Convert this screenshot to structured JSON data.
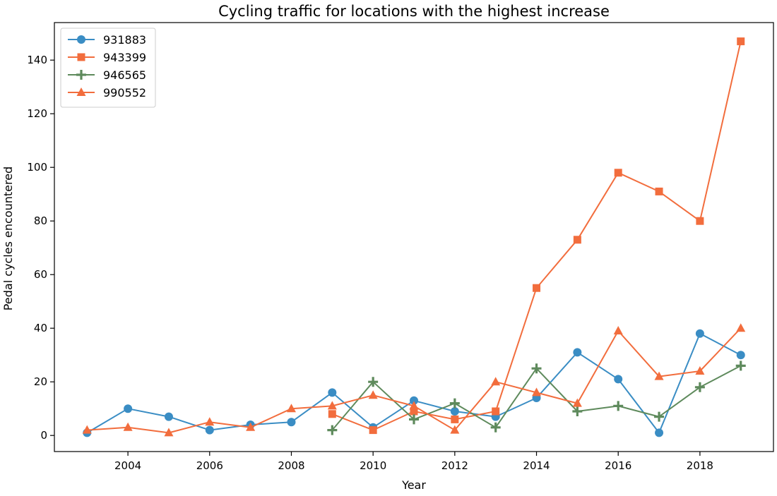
{
  "chart_data": {
    "type": "line",
    "title": "Cycling traffic for locations with the highest increase",
    "xlabel": "Year",
    "ylabel": "Pedal cycles encountered",
    "xlim": [
      2002.2,
      2019.8
    ],
    "ylim": [
      -6,
      154
    ],
    "xticks": [
      2004,
      2006,
      2008,
      2010,
      2012,
      2014,
      2016,
      2018
    ],
    "yticks": [
      0,
      20,
      40,
      60,
      80,
      100,
      120,
      140
    ],
    "grid": false,
    "legend_position": "top-left",
    "series": [
      {
        "name": "931883",
        "color": "#3a8dc4",
        "marker": "circle",
        "points": [
          [
            2003,
            1
          ],
          [
            2004,
            10
          ],
          [
            2005,
            7
          ],
          [
            2006,
            2
          ],
          [
            2007,
            4
          ],
          [
            2008,
            5
          ],
          [
            2009,
            16
          ],
          [
            2010,
            3
          ],
          [
            2011,
            13
          ],
          [
            2012,
            9
          ],
          [
            2013,
            7
          ],
          [
            2014,
            14
          ],
          [
            2015,
            31
          ],
          [
            2016,
            21
          ],
          [
            2017,
            1
          ],
          [
            2018,
            38
          ],
          [
            2019,
            30
          ]
        ]
      },
      {
        "name": "943399",
        "color": "#f26d3d",
        "marker": "square",
        "points": [
          [
            2009,
            8
          ],
          [
            2010,
            2
          ],
          [
            2011,
            9
          ],
          [
            2012,
            6
          ],
          [
            2013,
            9
          ],
          [
            2014,
            55
          ],
          [
            2015,
            73
          ],
          [
            2016,
            98
          ],
          [
            2017,
            91
          ],
          [
            2018,
            80
          ],
          [
            2019,
            147
          ]
        ]
      },
      {
        "name": "946565",
        "color": "#5e8a5c",
        "marker": "plus",
        "points": [
          [
            2009,
            2
          ],
          [
            2010,
            20
          ],
          [
            2011,
            6
          ],
          [
            2012,
            12
          ],
          [
            2013,
            3
          ],
          [
            2014,
            25
          ],
          [
            2015,
            9
          ],
          [
            2016,
            11
          ],
          [
            2017,
            7
          ],
          [
            2018,
            18
          ],
          [
            2019,
            26
          ]
        ]
      },
      {
        "name": "990552",
        "color": "#f26d3d",
        "marker": "triangle",
        "points": [
          [
            2003,
            2
          ],
          [
            2004,
            3
          ],
          [
            2005,
            1
          ],
          [
            2006,
            5
          ],
          [
            2007,
            3
          ],
          [
            2008,
            10
          ],
          [
            2009,
            11
          ],
          [
            2010,
            15
          ],
          [
            2011,
            11
          ],
          [
            2012,
            2
          ],
          [
            2013,
            20
          ],
          [
            2014,
            16
          ],
          [
            2015,
            12
          ],
          [
            2016,
            39
          ],
          [
            2017,
            22
          ],
          [
            2018,
            24
          ],
          [
            2019,
            40
          ]
        ]
      }
    ]
  }
}
